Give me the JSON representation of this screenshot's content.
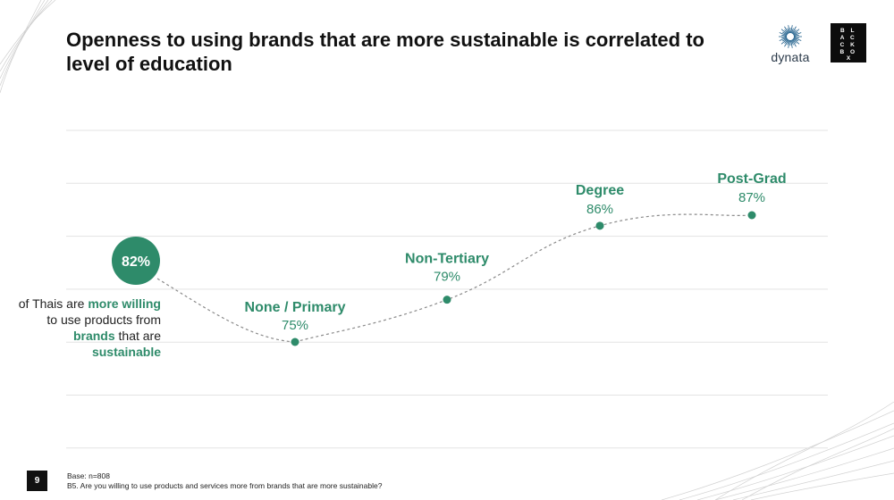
{
  "slide": {
    "title": "Openness to using brands that are more sustainable is correlated to level of education",
    "page_number": "9",
    "base_note": "Base: n=808",
    "question_note": "B5. Are you willing to use products and services more from brands that are more sustainable?"
  },
  "logos": {
    "dynata": "dynata",
    "blackbox_lines": [
      "B L",
      "A C",
      "C K",
      "B O",
      "X"
    ]
  },
  "callout": {
    "value": "82%",
    "text_parts": [
      {
        "text": "of Thais are ",
        "highlight": false
      },
      {
        "text": "more willing",
        "highlight": true
      },
      {
        "text": " to use products from ",
        "highlight": false
      },
      {
        "text": "brands",
        "highlight": true
      },
      {
        "text": " that are ",
        "highlight": false
      },
      {
        "text": "sustainable",
        "highlight": true
      }
    ]
  },
  "colors": {
    "accent": "#2e8b6a",
    "gridline": "#e3e3e3",
    "connector": "#8a8a8a"
  },
  "chart_data": {
    "type": "line",
    "categories": [
      "None / Primary",
      "Non-Tertiary",
      "Degree",
      "Post-Grad"
    ],
    "values": [
      75,
      79,
      86,
      87
    ],
    "value_labels": [
      "75%",
      "79%",
      "86%",
      "87%"
    ],
    "overall": 82,
    "unit": "%",
    "ylim": [
      70,
      90
    ],
    "grid": true,
    "line_style": "dashed"
  }
}
